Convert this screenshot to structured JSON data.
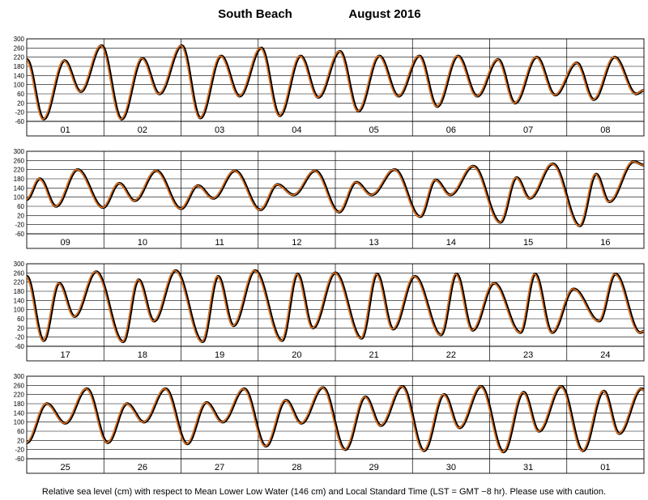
{
  "chart_data": {
    "type": "line",
    "title_location": "South Beach",
    "title_period": "August   2016",
    "ylabel_ticks": [
      "300",
      "260",
      "220",
      "180",
      "140",
      "100",
      "60",
      "20",
      "-20",
      "-60"
    ],
    "ylim": [
      -60,
      300
    ],
    "footnote": "Relative sea level (cm) with respect to Mean Lower Low Water (146 cm) and Local Standard Time (LST = GMT −8 hr). Please use with caution.",
    "grid": true,
    "series": [
      {
        "color": "#000000"
      },
      {
        "color": "#e8731c"
      }
    ],
    "panels": [
      {
        "days": [
          "01",
          "02",
          "03",
          "04",
          "05",
          "06",
          "07",
          "08"
        ],
        "extrema": [
          {
            "d": 0.0,
            "v": 210
          },
          {
            "d": 0.22,
            "v": -50
          },
          {
            "d": 0.49,
            "v": 205
          },
          {
            "d": 0.7,
            "v": 70
          },
          {
            "d": 0.97,
            "v": 270
          },
          {
            "d": 1.23,
            "v": -50
          },
          {
            "d": 1.5,
            "v": 215
          },
          {
            "d": 1.72,
            "v": 60
          },
          {
            "d": 2.01,
            "v": 270
          },
          {
            "d": 2.25,
            "v": -45
          },
          {
            "d": 2.52,
            "v": 225
          },
          {
            "d": 2.76,
            "v": 50
          },
          {
            "d": 3.04,
            "v": 260
          },
          {
            "d": 3.28,
            "v": -35
          },
          {
            "d": 3.55,
            "v": 225
          },
          {
            "d": 3.78,
            "v": 45
          },
          {
            "d": 4.06,
            "v": 245
          },
          {
            "d": 4.3,
            "v": -15
          },
          {
            "d": 4.57,
            "v": 225
          },
          {
            "d": 4.82,
            "v": 50
          },
          {
            "d": 5.09,
            "v": 225
          },
          {
            "d": 5.32,
            "v": 5
          },
          {
            "d": 5.59,
            "v": 225
          },
          {
            "d": 5.84,
            "v": 50
          },
          {
            "d": 6.11,
            "v": 210
          },
          {
            "d": 6.33,
            "v": 20
          },
          {
            "d": 6.61,
            "v": 220
          },
          {
            "d": 6.85,
            "v": 55
          },
          {
            "d": 7.13,
            "v": 195
          },
          {
            "d": 7.35,
            "v": 35
          },
          {
            "d": 7.62,
            "v": 220
          },
          {
            "d": 7.9,
            "v": 60
          },
          {
            "d": 8.0,
            "v": 75
          }
        ]
      },
      {
        "days": [
          "09",
          "10",
          "11",
          "12",
          "13",
          "14",
          "15",
          "16"
        ],
        "extrema": [
          {
            "d": 0.0,
            "v": 90
          },
          {
            "d": 0.17,
            "v": 180
          },
          {
            "d": 0.38,
            "v": 60
          },
          {
            "d": 0.66,
            "v": 220
          },
          {
            "d": 0.99,
            "v": 55
          },
          {
            "d": 1.2,
            "v": 160
          },
          {
            "d": 1.4,
            "v": 85
          },
          {
            "d": 1.68,
            "v": 215
          },
          {
            "d": 2.0,
            "v": 50
          },
          {
            "d": 2.22,
            "v": 150
          },
          {
            "d": 2.42,
            "v": 95
          },
          {
            "d": 2.7,
            "v": 215
          },
          {
            "d": 3.03,
            "v": 45
          },
          {
            "d": 3.25,
            "v": 155
          },
          {
            "d": 3.46,
            "v": 110
          },
          {
            "d": 3.74,
            "v": 215
          },
          {
            "d": 4.05,
            "v": 35
          },
          {
            "d": 4.27,
            "v": 165
          },
          {
            "d": 4.47,
            "v": 110
          },
          {
            "d": 4.77,
            "v": 220
          },
          {
            "d": 5.1,
            "v": 15
          },
          {
            "d": 5.3,
            "v": 175
          },
          {
            "d": 5.49,
            "v": 110
          },
          {
            "d": 5.79,
            "v": 235
          },
          {
            "d": 6.14,
            "v": -10
          },
          {
            "d": 6.35,
            "v": 185
          },
          {
            "d": 6.52,
            "v": 95
          },
          {
            "d": 6.82,
            "v": 245
          },
          {
            "d": 7.17,
            "v": -25
          },
          {
            "d": 7.38,
            "v": 200
          },
          {
            "d": 7.55,
            "v": 80
          },
          {
            "d": 7.87,
            "v": 255
          },
          {
            "d": 8.0,
            "v": 240
          }
        ]
      },
      {
        "days": [
          "17",
          "18",
          "19",
          "20",
          "21",
          "22",
          "23",
          "24"
        ],
        "extrema": [
          {
            "d": 0.0,
            "v": 245
          },
          {
            "d": 0.22,
            "v": -35
          },
          {
            "d": 0.42,
            "v": 215
          },
          {
            "d": 0.62,
            "v": 70
          },
          {
            "d": 0.9,
            "v": 265
          },
          {
            "d": 1.25,
            "v": -40
          },
          {
            "d": 1.45,
            "v": 230
          },
          {
            "d": 1.65,
            "v": 50
          },
          {
            "d": 1.93,
            "v": 270
          },
          {
            "d": 2.28,
            "v": -40
          },
          {
            "d": 2.48,
            "v": 245
          },
          {
            "d": 2.68,
            "v": 30
          },
          {
            "d": 2.96,
            "v": 270
          },
          {
            "d": 3.31,
            "v": -35
          },
          {
            "d": 3.51,
            "v": 255
          },
          {
            "d": 3.71,
            "v": 20
          },
          {
            "d": 4.0,
            "v": 260
          },
          {
            "d": 4.34,
            "v": -25
          },
          {
            "d": 4.54,
            "v": 255
          },
          {
            "d": 4.75,
            "v": 15
          },
          {
            "d": 5.03,
            "v": 245
          },
          {
            "d": 5.37,
            "v": -10
          },
          {
            "d": 5.57,
            "v": 255
          },
          {
            "d": 5.78,
            "v": 10
          },
          {
            "d": 6.06,
            "v": 215
          },
          {
            "d": 6.4,
            "v": 0
          },
          {
            "d": 6.59,
            "v": 255
          },
          {
            "d": 6.81,
            "v": 0
          },
          {
            "d": 7.09,
            "v": 190
          },
          {
            "d": 7.42,
            "v": 50
          },
          {
            "d": 7.63,
            "v": 255
          },
          {
            "d": 7.95,
            "v": 0
          },
          {
            "d": 8.0,
            "v": 5
          }
        ]
      },
      {
        "days": [
          "25",
          "26",
          "27",
          "28",
          "29",
          "30",
          "31",
          "01"
        ],
        "extrema": [
          {
            "d": 0.0,
            "v": 10
          },
          {
            "d": 0.26,
            "v": 180
          },
          {
            "d": 0.5,
            "v": 95
          },
          {
            "d": 0.78,
            "v": 245
          },
          {
            "d": 1.05,
            "v": 10
          },
          {
            "d": 1.3,
            "v": 180
          },
          {
            "d": 1.52,
            "v": 100
          },
          {
            "d": 1.8,
            "v": 245
          },
          {
            "d": 2.08,
            "v": 5
          },
          {
            "d": 2.33,
            "v": 185
          },
          {
            "d": 2.54,
            "v": 100
          },
          {
            "d": 2.82,
            "v": 245
          },
          {
            "d": 3.1,
            "v": -5
          },
          {
            "d": 3.36,
            "v": 195
          },
          {
            "d": 3.56,
            "v": 95
          },
          {
            "d": 3.84,
            "v": 250
          },
          {
            "d": 4.13,
            "v": -20
          },
          {
            "d": 4.39,
            "v": 210
          },
          {
            "d": 4.59,
            "v": 85
          },
          {
            "d": 4.87,
            "v": 255
          },
          {
            "d": 5.15,
            "v": -25
          },
          {
            "d": 5.41,
            "v": 220
          },
          {
            "d": 5.61,
            "v": 75
          },
          {
            "d": 5.89,
            "v": 255
          },
          {
            "d": 6.18,
            "v": -30
          },
          {
            "d": 6.44,
            "v": 230
          },
          {
            "d": 6.64,
            "v": 60
          },
          {
            "d": 6.93,
            "v": 255
          },
          {
            "d": 7.21,
            "v": -25
          },
          {
            "d": 7.48,
            "v": 235
          },
          {
            "d": 7.68,
            "v": 50
          },
          {
            "d": 7.97,
            "v": 245
          },
          {
            "d": 8.0,
            "v": 240
          }
        ]
      }
    ]
  }
}
